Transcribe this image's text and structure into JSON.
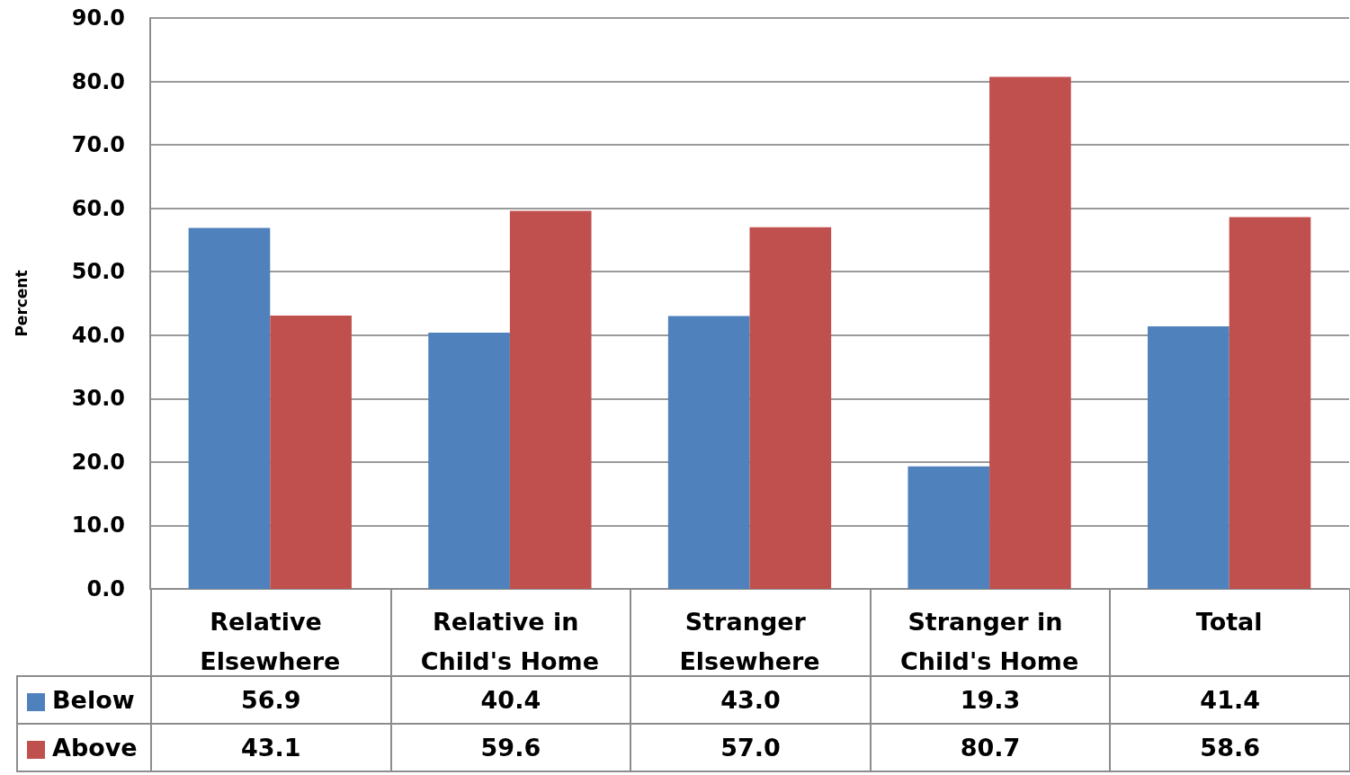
{
  "chart_data": {
    "type": "bar",
    "ylabel": "Percent",
    "categories": [
      "Relative Elsewhere",
      "Relative in Child's Home",
      "Stranger Elsewhere",
      "Stranger in Child's Home",
      "Total"
    ],
    "series": [
      {
        "name": "Below",
        "color": "#4f81bd",
        "values": [
          56.9,
          40.4,
          43.0,
          19.3,
          41.4
        ]
      },
      {
        "name": "Above",
        "color": "#c0504d",
        "values": [
          43.1,
          59.6,
          57.0,
          80.7,
          58.6
        ]
      }
    ],
    "value_labels": [
      [
        "56.9",
        "40.4",
        "43.0",
        "19.3",
        "41.4"
      ],
      [
        "43.1",
        "59.6",
        "57.0",
        "80.7",
        "58.6"
      ]
    ],
    "ylim": [
      0,
      90
    ],
    "yticks": [
      {
        "value": 0,
        "label": "0.0"
      },
      {
        "value": 10,
        "label": "10.0"
      },
      {
        "value": 20,
        "label": "20.0"
      },
      {
        "value": 30,
        "label": "30.0"
      },
      {
        "value": 40,
        "label": "40.0"
      },
      {
        "value": 50,
        "label": "50.0"
      },
      {
        "value": 60,
        "label": "60.0"
      },
      {
        "value": 70,
        "label": "70.0"
      },
      {
        "value": 80,
        "label": "80.0"
      },
      {
        "value": 90,
        "label": "90.0"
      }
    ],
    "grid": "y",
    "legend": "bottom left"
  }
}
